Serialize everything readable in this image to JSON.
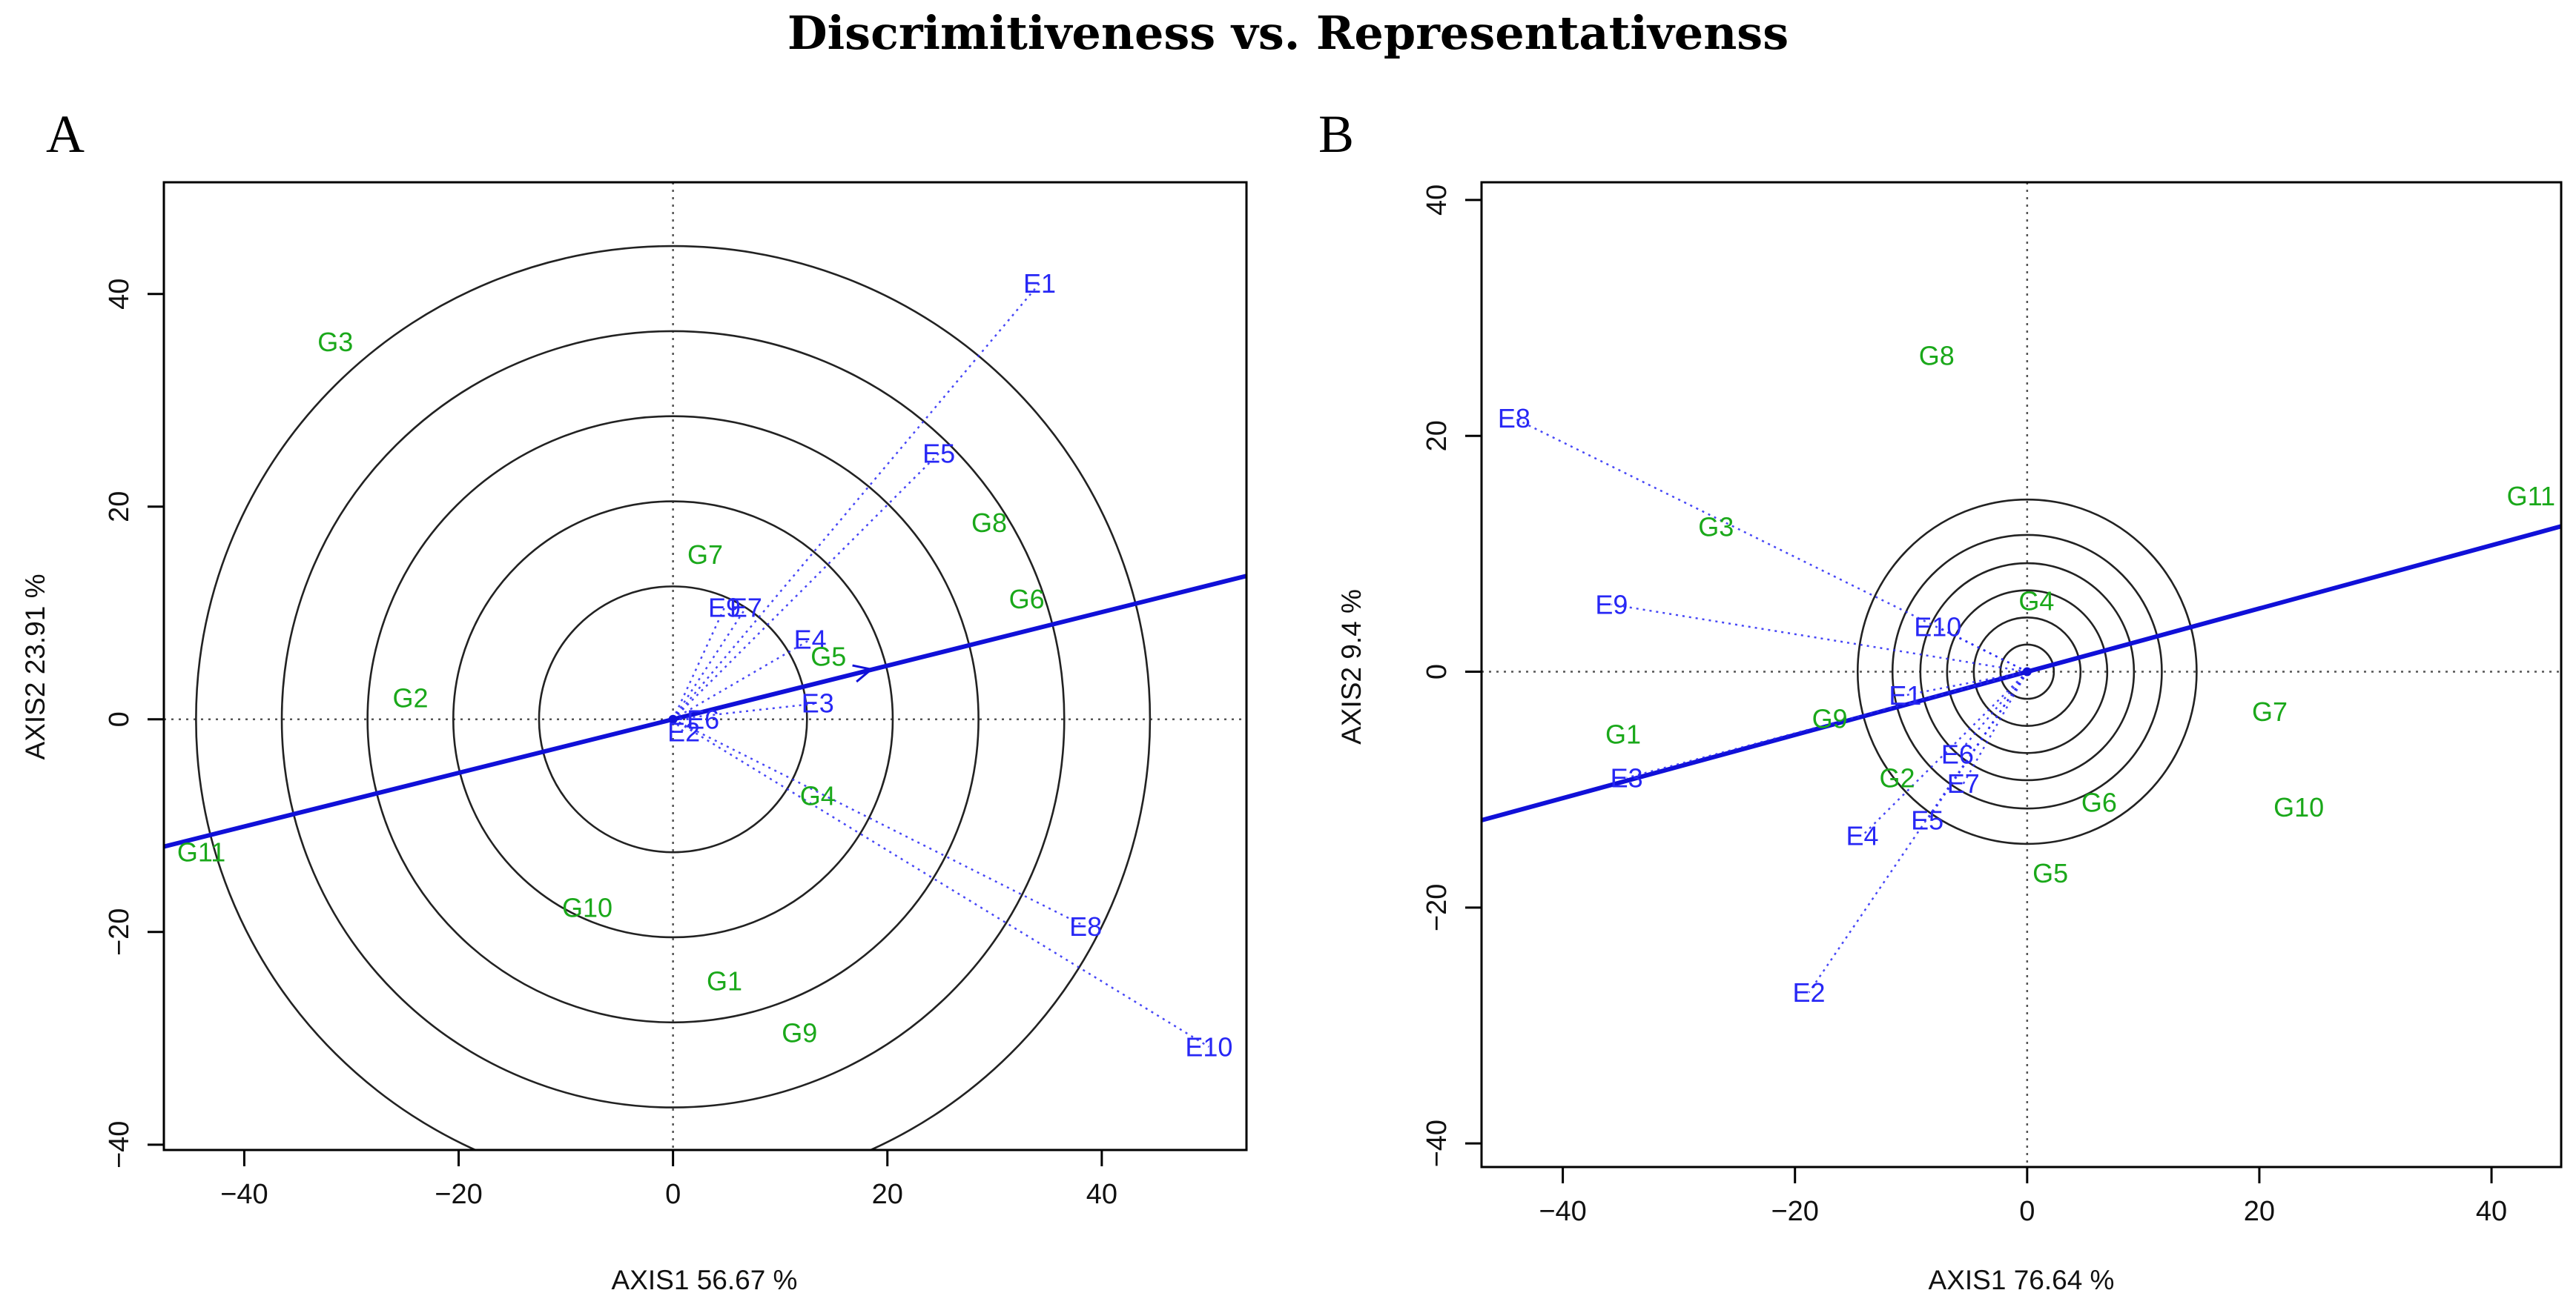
{
  "figure": {
    "title": "Discrimitiveness vs. Representativenss"
  },
  "colors": {
    "env": "#2727f5",
    "gen": "#1aa81a",
    "axisLine": "#1010d8",
    "circle": "#222222",
    "box": "#000000",
    "guide": "#555555"
  },
  "chart_data": [
    {
      "type": "scatter",
      "panel": "A",
      "xlabel": "AXIS1 56.67 %",
      "ylabel": "AXIS2 23.91 %",
      "xlim": [
        -47.5,
        53.5
      ],
      "ylim": [
        -40.5,
        50.5
      ],
      "xticks": [
        -40,
        -20,
        0,
        20,
        40
      ],
      "yticks": [
        -40,
        -20,
        0,
        20,
        40
      ],
      "circle_radii": [
        12.5,
        20.5,
        28.5,
        36.5,
        44.5
      ],
      "ave_axis": {
        "slope": 0.252,
        "arrow_to": [
          18.5,
          4.7
        ]
      },
      "environments": [
        {
          "label": "E1",
          "x": 34.2,
          "y": 41.0
        },
        {
          "label": "E2",
          "x": 1.0,
          "y": -1.2
        },
        {
          "label": "E3",
          "x": 13.5,
          "y": 1.5
        },
        {
          "label": "E4",
          "x": 12.8,
          "y": 7.5
        },
        {
          "label": "E5",
          "x": 24.8,
          "y": 25.0
        },
        {
          "label": "E6",
          "x": 2.8,
          "y": 0.0
        },
        {
          "label": "E7",
          "x": 6.8,
          "y": 10.5
        },
        {
          "label": "E8",
          "x": 38.5,
          "y": -19.5
        },
        {
          "label": "E9",
          "x": 4.8,
          "y": 10.5
        },
        {
          "label": "E10",
          "x": 50.0,
          "y": -30.8
        }
      ],
      "genotypes": [
        {
          "label": "G1",
          "x": 4.8,
          "y": -24.6
        },
        {
          "label": "G2",
          "x": -24.5,
          "y": 2.0
        },
        {
          "label": "G3",
          "x": -31.5,
          "y": 35.5
        },
        {
          "label": "G4",
          "x": 13.5,
          "y": -7.2
        },
        {
          "label": "G5",
          "x": 14.5,
          "y": 5.9
        },
        {
          "label": "G6",
          "x": 33.0,
          "y": 11.3
        },
        {
          "label": "G7",
          "x": 3.0,
          "y": 15.5
        },
        {
          "label": "G8",
          "x": 29.5,
          "y": 18.5
        },
        {
          "label": "G9",
          "x": 11.8,
          "y": -29.5
        },
        {
          "label": "G10",
          "x": -8.0,
          "y": -17.7
        },
        {
          "label": "G11",
          "x": -44.0,
          "y": -12.5
        }
      ]
    },
    {
      "type": "scatter",
      "panel": "B",
      "xlabel": "AXIS1 76.64 %",
      "ylabel": "AXIS2 9.4 %",
      "xlim": [
        -47.0,
        46.0
      ],
      "ylim": [
        -42.0,
        41.5
      ],
      "xticks": [
        -40,
        -20,
        0,
        20,
        40
      ],
      "yticks": [
        -40,
        -20,
        0,
        20,
        40
      ],
      "circle_radii": [
        2.3,
        4.6,
        6.9,
        9.2,
        11.6,
        14.6
      ],
      "ave_axis": {
        "slope": 0.268
      },
      "environments": [
        {
          "label": "E1",
          "x": -10.5,
          "y": -2.0
        },
        {
          "label": "E2",
          "x": -18.8,
          "y": -27.2
        },
        {
          "label": "E3",
          "x": -34.5,
          "y": -9.0
        },
        {
          "label": "E4",
          "x": -14.2,
          "y": -13.9
        },
        {
          "label": "E5",
          "x": -8.6,
          "y": -12.6
        },
        {
          "label": "E6",
          "x": -6.0,
          "y": -7.0
        },
        {
          "label": "E7",
          "x": -5.5,
          "y": -9.5
        },
        {
          "label": "E8",
          "x": -44.2,
          "y": 21.5
        },
        {
          "label": "E9",
          "x": -35.8,
          "y": 5.7
        },
        {
          "label": "E10",
          "x": -7.7,
          "y": 3.8
        }
      ],
      "genotypes": [
        {
          "label": "G1",
          "x": -34.8,
          "y": -5.3
        },
        {
          "label": "G2",
          "x": -11.2,
          "y": -9.0
        },
        {
          "label": "G3",
          "x": -26.8,
          "y": 12.3
        },
        {
          "label": "G4",
          "x": 0.8,
          "y": 6.0
        },
        {
          "label": "G5",
          "x": 2.0,
          "y": -17.1
        },
        {
          "label": "G6",
          "x": 6.2,
          "y": -11.1
        },
        {
          "label": "G7",
          "x": 20.9,
          "y": -3.4
        },
        {
          "label": "G8",
          "x": -7.8,
          "y": 26.8
        },
        {
          "label": "G9",
          "x": -17.0,
          "y": -4.0
        },
        {
          "label": "G10",
          "x": 23.4,
          "y": -11.5
        },
        {
          "label": "G11",
          "x": 43.4,
          "y": 14.9
        }
      ]
    }
  ]
}
